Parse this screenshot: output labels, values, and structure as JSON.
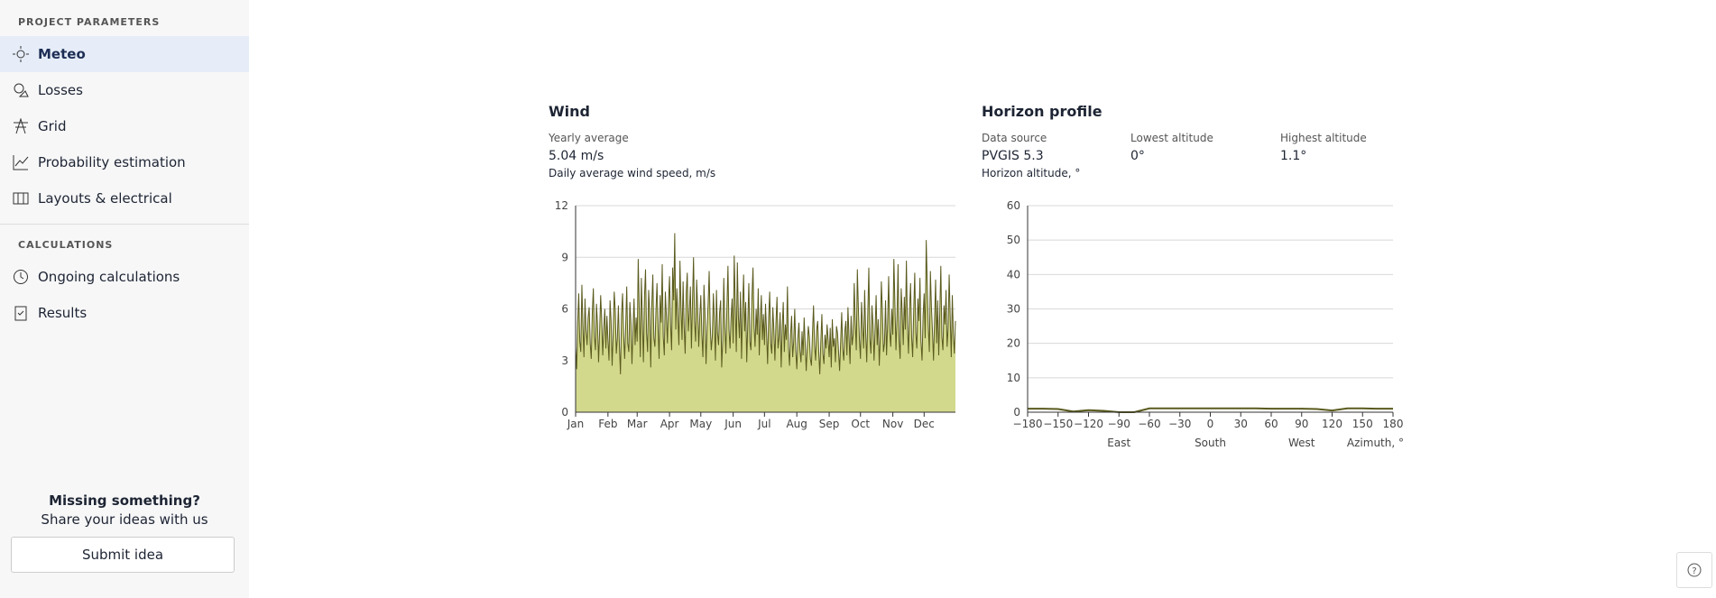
{
  "sidebar": {
    "section1": "PROJECT PARAMETERS",
    "items1": [
      "Meteo",
      "Losses",
      "Grid",
      "Probability estimation",
      "Layouts & electrical"
    ],
    "section2": "CALCULATIONS",
    "items2": [
      "Ongoing calculations",
      "Results"
    ],
    "footer_title": "Missing something?",
    "footer_text": "Share your ideas with us",
    "button": "Submit idea"
  },
  "wind": {
    "title": "Wind",
    "stat_label": "Yearly average",
    "stat_value": "5.04 m/s"
  },
  "horizon": {
    "title": "Horizon profile",
    "stats": [
      {
        "label": "Data source",
        "value": "PVGIS 5.3"
      },
      {
        "label": "Lowest altitude",
        "value": "0°"
      },
      {
        "label": "Highest altitude",
        "value": "1.1°"
      }
    ]
  },
  "chart_data": [
    {
      "type": "area",
      "axis_label": "Daily average wind speed, m/s",
      "color": "#5a5a1e",
      "fill": "#d2d98c",
      "xlim": [
        1,
        365
      ],
      "xticks": [
        {
          "value": 1,
          "label": "Jan"
        },
        {
          "value": 32,
          "label": "Feb"
        },
        {
          "value": 60,
          "label": "Mar"
        },
        {
          "value": 91,
          "label": "Apr"
        },
        {
          "value": 121,
          "label": "May"
        },
        {
          "value": 152,
          "label": "Jun"
        },
        {
          "value": 182,
          "label": "Jul"
        },
        {
          "value": 213,
          "label": "Aug"
        },
        {
          "value": 244,
          "label": "Sep"
        },
        {
          "value": 274,
          "label": "Oct"
        },
        {
          "value": 305,
          "label": "Nov"
        },
        {
          "value": 335,
          "label": "Dec"
        }
      ],
      "ylim": [
        0,
        12
      ],
      "yticks": [
        0,
        3,
        6,
        9,
        12
      ],
      "grid": true,
      "values": [
        3.8,
        2.5,
        5.2,
        6.9,
        4.1,
        3.5,
        7.4,
        5.0,
        3.2,
        6.6,
        4.8,
        3.9,
        5.5,
        6.1,
        4.0,
        3.1,
        5.8,
        7.2,
        4.4,
        3.6,
        6.3,
        5.1,
        2.9,
        4.7,
        6.8,
        5.4,
        3.3,
        4.9,
        6.0,
        3.7,
        5.6,
        4.2,
        3.0,
        6.5,
        5.3,
        2.7,
        4.6,
        7.0,
        5.9,
        3.4,
        4.3,
        6.2,
        3.8,
        2.2,
        5.7,
        6.9,
        4.5,
        3.1,
        5.0,
        7.3,
        4.0,
        3.5,
        6.4,
        5.2,
        2.8,
        4.8,
        6.6,
        3.9,
        5.5,
        4.1,
        8.9,
        6.0,
        3.2,
        7.8,
        5.4,
        2.9,
        6.7,
        8.3,
        4.6,
        3.5,
        7.1,
        5.8,
        2.6,
        6.2,
        8.0,
        4.3,
        3.8,
        5.9,
        7.5,
        4.9,
        3.1,
        6.8,
        5.2,
        8.6,
        4.4,
        3.3,
        7.0,
        5.6,
        4.0,
        6.3,
        7.9,
        5.1,
        3.6,
        8.4,
        6.5,
        10.4,
        4.8,
        7.2,
        5.5,
        3.9,
        8.8,
        6.1,
        4.2,
        7.6,
        5.0,
        3.4,
        6.9,
        8.1,
        4.7,
        5.8,
        7.3,
        3.7,
        6.4,
        9.0,
        5.3,
        4.1,
        7.7,
        6.0,
        3.8,
        5.6,
        6.8,
        4.5,
        3.2,
        7.4,
        5.7,
        2.8,
        4.9,
        6.3,
        8.2,
        5.1,
        3.6,
        4.4,
        6.9,
        5.3,
        3.0,
        7.1,
        4.6,
        3.9,
        5.8,
        6.5,
        2.6,
        4.2,
        7.8,
        5.0,
        3.4,
        6.1,
        8.5,
        4.8,
        3.7,
        5.5,
        6.6,
        4.0,
        9.1,
        6.2,
        3.5,
        8.7,
        5.6,
        4.3,
        7.0,
        3.1,
        5.9,
        8.0,
        4.7,
        6.4,
        2.9,
        5.2,
        7.5,
        4.1,
        3.6,
        6.7,
        8.4,
        5.0,
        3.8,
        6.0,
        4.5,
        7.2,
        3.3,
        5.4,
        6.8,
        4.2,
        5.7,
        3.9,
        6.3,
        4.6,
        2.8,
        5.5,
        7.0,
        4.0,
        3.4,
        6.1,
        4.8,
        3.0,
        5.2,
        6.7,
        3.7,
        4.4,
        5.8,
        2.6,
        4.9,
        6.4,
        3.5,
        5.1,
        4.2,
        7.3,
        3.8,
        2.7,
        4.5,
        5.6,
        3.2,
        4.1,
        6.0,
        3.6,
        2.5,
        4.3,
        5.2,
        3.6,
        2.9,
        4.7,
        3.3,
        5.5,
        4.0,
        2.4,
        3.8,
        5.0,
        4.4,
        3.1,
        2.7,
        4.6,
        6.2,
        3.9,
        3.0,
        4.8,
        5.3,
        3.5,
        2.2,
        4.1,
        5.7,
        3.4,
        2.8,
        4.5,
        3.7,
        5.1,
        4.2,
        3.2,
        4.9,
        2.6,
        5.4,
        3.8,
        4.3,
        2.9,
        5.0,
        4.6,
        3.5,
        2.4,
        4.1,
        5.8,
        3.7,
        3.0,
        4.7,
        5.3,
        3.3,
        6.1,
        4.4,
        2.8,
        5.6,
        3.9,
        4.5,
        7.5,
        5.2,
        3.6,
        8.3,
        6.0,
        4.2,
        3.1,
        6.4,
        5.0,
        3.7,
        7.1,
        4.6,
        2.9,
        5.7,
        8.4,
        4.3,
        3.4,
        6.2,
        5.1,
        3.0,
        4.8,
        6.8,
        3.9,
        5.4,
        2.7,
        4.4,
        7.6,
        5.9,
        3.5,
        4.0,
        6.5,
        3.3,
        5.2,
        7.9,
        4.7,
        3.8,
        6.0,
        4.5,
        8.9,
        6.3,
        3.6,
        5.5,
        8.6,
        4.2,
        3.1,
        7.2,
        5.8,
        3.9,
        6.7,
        4.8,
        8.8,
        5.1,
        3.4,
        6.0,
        7.5,
        4.4,
        3.2,
        5.9,
        8.1,
        4.6,
        3.7,
        6.6,
        5.3,
        7.8,
        4.1,
        3.0,
        5.6,
        6.9,
        4.3,
        10.0,
        7.4,
        5.0,
        3.5,
        8.2,
        6.1,
        4.7,
        3.0,
        5.4,
        7.7,
        4.0,
        6.5,
        3.3,
        5.8,
        8.5,
        4.4,
        3.6,
        6.2,
        5.1,
        7.1,
        3.8,
        4.9,
        8.0,
        5.5,
        3.2,
        6.8,
        4.5,
        3.4,
        5.3
      ]
    },
    {
      "type": "line",
      "axis_label": "Horizon altitude, °",
      "color": "#5a5a1e",
      "x": [
        -180,
        -165,
        -150,
        -135,
        -120,
        -105,
        -90,
        -75,
        -60,
        -45,
        -30,
        -15,
        0,
        15,
        30,
        45,
        60,
        75,
        90,
        105,
        120,
        135,
        150,
        165,
        180
      ],
      "values": [
        1.0,
        1.0,
        0.9,
        0.2,
        0.6,
        0.4,
        0.0,
        0.0,
        1.1,
        1.1,
        1.1,
        1.1,
        1.1,
        1.1,
        1.1,
        1.1,
        1.0,
        1.0,
        1.0,
        0.9,
        0.5,
        1.1,
        1.1,
        1.0,
        1.0
      ],
      "xlim": [
        -180,
        180
      ],
      "xticks": [
        {
          "value": -180,
          "label": "−180"
        },
        {
          "value": -150,
          "label": "−150"
        },
        {
          "value": -120,
          "label": "−120"
        },
        {
          "value": -90,
          "label": "−90"
        },
        {
          "value": -60,
          "label": "−60"
        },
        {
          "value": -30,
          "label": "−30"
        },
        0,
        30,
        60,
        90,
        120,
        150,
        180
      ],
      "ylim": [
        0,
        60
      ],
      "yticks": [
        0,
        10,
        20,
        30,
        40,
        50,
        60
      ],
      "grid": true,
      "x_annotations": [
        {
          "value": -90,
          "label": "East"
        },
        {
          "value": 0,
          "label": "South"
        },
        {
          "value": 90,
          "label": "West"
        }
      ],
      "x_axis_label": "Azimuth, °"
    }
  ]
}
